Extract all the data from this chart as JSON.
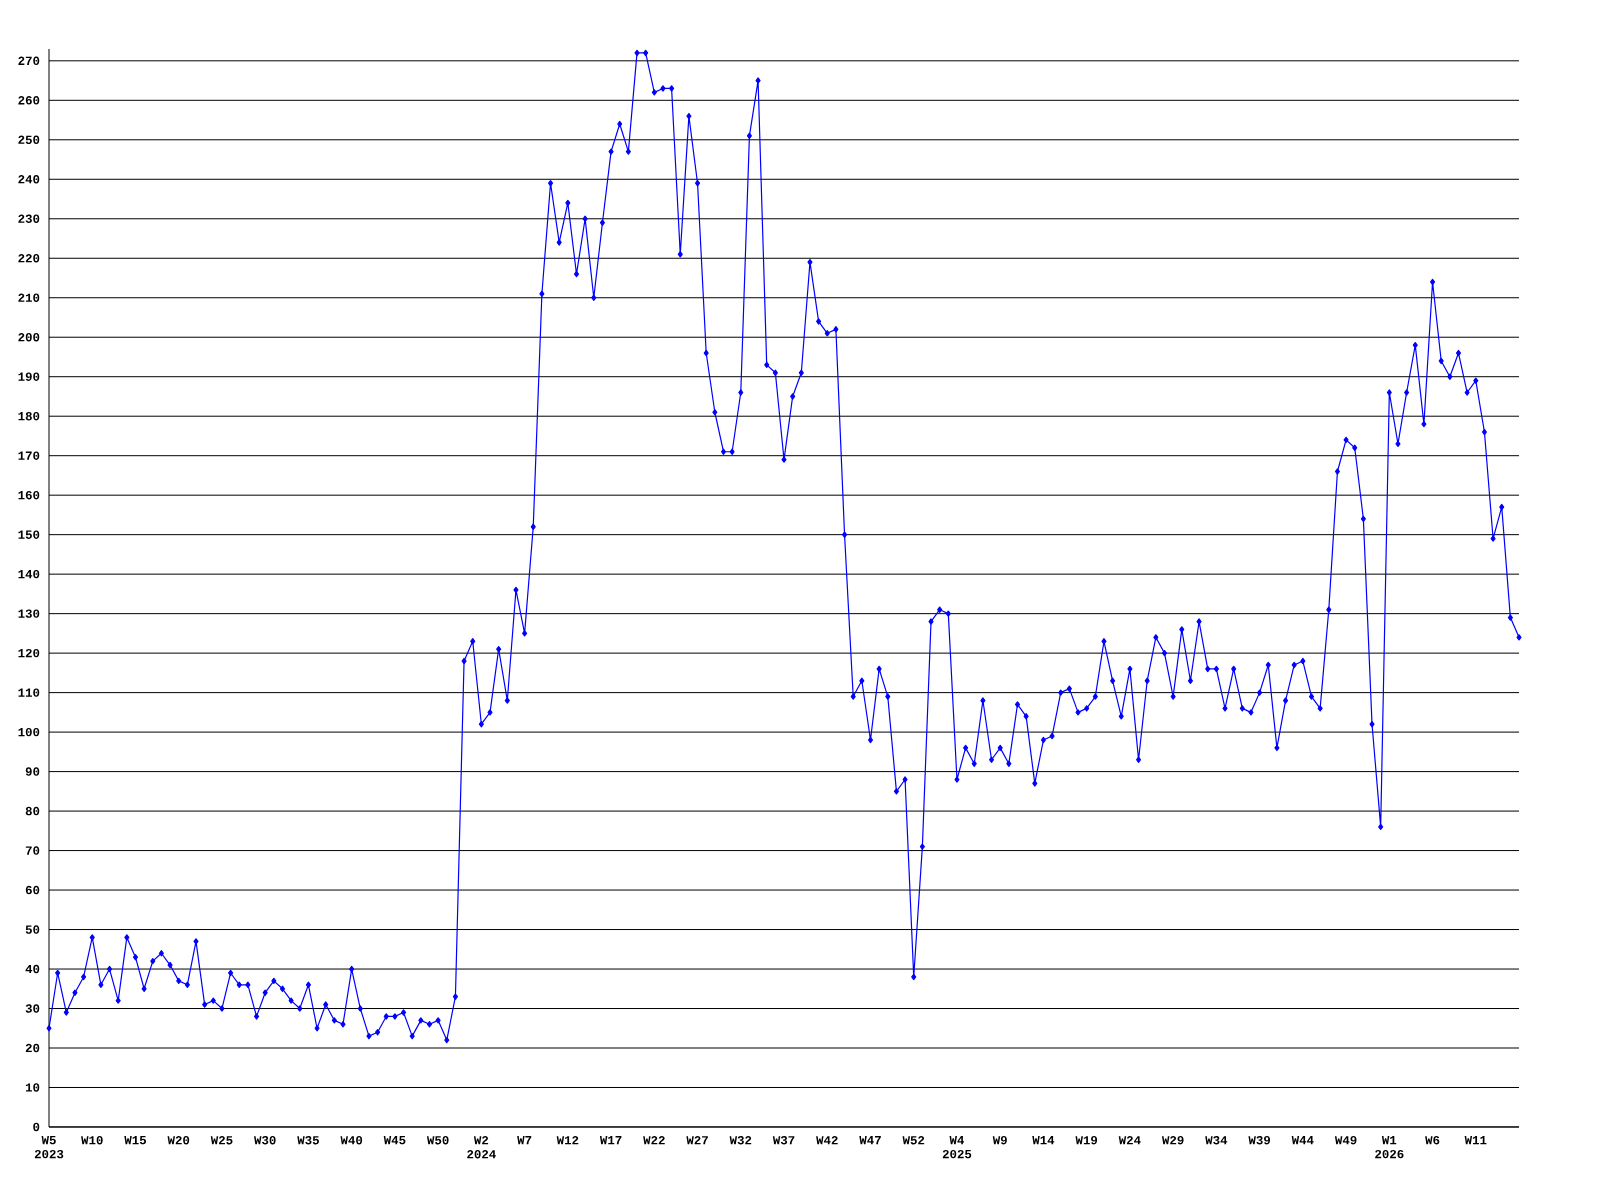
{
  "chart_data": {
    "type": "line",
    "categories": [
      "W5 2023",
      null,
      null,
      null,
      null,
      "W10",
      null,
      null,
      null,
      null,
      "W15",
      null,
      null,
      null,
      null,
      "W20",
      null,
      null,
      null,
      null,
      "W25",
      null,
      null,
      null,
      null,
      "W30",
      null,
      null,
      null,
      null,
      "W35",
      null,
      null,
      null,
      null,
      "W40",
      null,
      null,
      null,
      null,
      "W45",
      null,
      null,
      null,
      null,
      "W50",
      null,
      null,
      null,
      null,
      "W2 2024",
      null,
      null,
      null,
      null,
      "W7",
      null,
      null,
      null,
      null,
      "W12",
      null,
      null,
      null,
      null,
      "W17",
      null,
      null,
      null,
      null,
      "W22",
      null,
      null,
      null,
      null,
      "W27",
      null,
      null,
      null,
      null,
      "W32",
      null,
      null,
      null,
      null,
      "W37",
      null,
      null,
      null,
      null,
      "W42",
      null,
      null,
      null,
      null,
      "W47",
      null,
      null,
      null,
      null,
      "W52",
      null,
      null,
      null,
      null,
      "W4 2025",
      null,
      null,
      null,
      null,
      "W9",
      null,
      null,
      null,
      null,
      "W14",
      null,
      null,
      null,
      null,
      "W19",
      null,
      null,
      null,
      null,
      "W24",
      null,
      null,
      null,
      null,
      "W29",
      null,
      null,
      null,
      null,
      "W34",
      null,
      null,
      null,
      null,
      "W39",
      null,
      null,
      null,
      null,
      "W44",
      null,
      null,
      null,
      null,
      "W49",
      null,
      null,
      null,
      null,
      "W1 2026",
      null,
      null,
      null,
      null,
      "W6",
      null,
      null,
      null,
      null,
      "W11",
      null,
      null,
      null,
      null,
      null
    ],
    "values": [
      25,
      39,
      29,
      34,
      38,
      48,
      36,
      40,
      32,
      48,
      43,
      35,
      42,
      44,
      41,
      37,
      36,
      47,
      31,
      32,
      30,
      39,
      36,
      36,
      28,
      34,
      37,
      35,
      32,
      30,
      36,
      25,
      31,
      27,
      26,
      40,
      30,
      23,
      24,
      28,
      28,
      29,
      23,
      27,
      26,
      27,
      22,
      33,
      118,
      123,
      102,
      105,
      121,
      108,
      136,
      125,
      152,
      211,
      239,
      224,
      234,
      216,
      230,
      210,
      229,
      247,
      254,
      247,
      272,
      272,
      262,
      263,
      263,
      221,
      256,
      239,
      196,
      181,
      171,
      171,
      186,
      251,
      265,
      193,
      191,
      169,
      185,
      191,
      219,
      204,
      201,
      202,
      150,
      109,
      113,
      98,
      116,
      109,
      85,
      88,
      38,
      71,
      128,
      131,
      130,
      88,
      96,
      92,
      108,
      93,
      96,
      92,
      107,
      104,
      87,
      98,
      99,
      110,
      111,
      105,
      106,
      109,
      123,
      113,
      104,
      116,
      93,
      113,
      124,
      120,
      109,
      126,
      113,
      128,
      116,
      116,
      106,
      116,
      106,
      105,
      110,
      117,
      96,
      108,
      117,
      118,
      109,
      106,
      131,
      166,
      174,
      172,
      154,
      102,
      76,
      186,
      173,
      186,
      198,
      178,
      214,
      194,
      190,
      196,
      186,
      189,
      176,
      149,
      157,
      129,
      124
    ],
    "color": "#0000ff",
    "ylim": [
      0,
      273
    ],
    "yticks": [
      0,
      10,
      20,
      30,
      40,
      50,
      60,
      70,
      80,
      90,
      100,
      110,
      120,
      130,
      140,
      150,
      160,
      170,
      180,
      190,
      200,
      210,
      220,
      230,
      240,
      250,
      260,
      270
    ],
    "grid": "y",
    "marker": "diamond"
  }
}
